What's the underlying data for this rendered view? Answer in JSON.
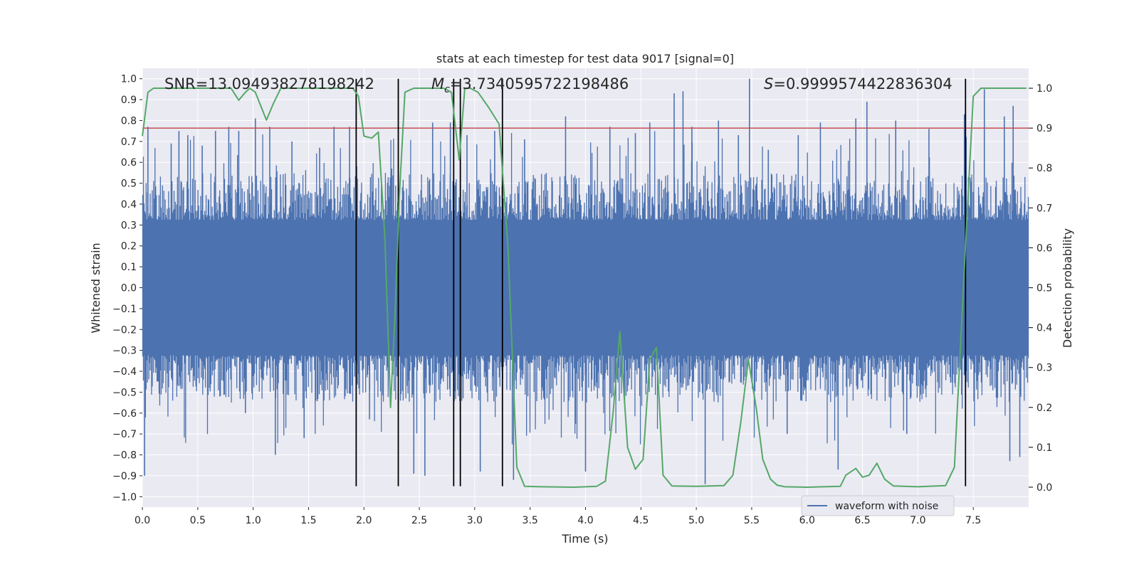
{
  "chart_data": {
    "type": "line",
    "title": "stats at each timestep for test data 9017 [signal=0]",
    "xlabel": "Time (s)",
    "ylabel": "Whitened strain",
    "y2label": "Detection probability",
    "xlim": [
      0.0,
      8.0
    ],
    "ylim": [
      -1.05,
      1.05
    ],
    "y2lim": [
      -0.05,
      1.05
    ],
    "xticks": [
      0.0,
      0.5,
      1.0,
      1.5,
      2.0,
      2.5,
      3.0,
      3.5,
      4.0,
      4.5,
      5.0,
      5.5,
      6.0,
      6.5,
      7.0,
      7.5
    ],
    "xtick_labels": [
      "0.0",
      "0.5",
      "1.0",
      "1.5",
      "2.0",
      "2.5",
      "3.0",
      "3.5",
      "4.0",
      "4.5",
      "5.0",
      "5.5",
      "6.0",
      "6.5",
      "7.0",
      "7.5"
    ],
    "yticks": [
      1.0,
      0.9,
      0.8,
      0.7,
      0.6,
      0.5,
      0.4,
      0.3,
      0.2,
      0.1,
      0.0,
      -0.1,
      -0.2,
      -0.3,
      -0.4,
      -0.5,
      -0.6,
      -0.7,
      -0.8,
      -0.9,
      -1.0
    ],
    "ytick_labels": [
      "1.0",
      "0.9",
      "0.8",
      "0.7",
      "0.6",
      "0.5",
      "0.4",
      "0.3",
      "0.2",
      "0.1",
      "0.0",
      "−0.1",
      "−0.2",
      "−0.3",
      "−0.4",
      "−0.5",
      "−0.6",
      "−0.7",
      "−0.8",
      "−0.9",
      "−1.0"
    ],
    "y2ticks": [
      1.0,
      0.9,
      0.8,
      0.7,
      0.6,
      0.5,
      0.4,
      0.3,
      0.2,
      0.1,
      0.0
    ],
    "y2tick_labels": [
      "1.0",
      "0.9",
      "0.8",
      "0.7",
      "0.6",
      "0.5",
      "0.4",
      "0.3",
      "0.2",
      "0.1",
      "0.0"
    ],
    "grid": true,
    "legend": {
      "placement": "lower-right",
      "entries": [
        "waveform with noise"
      ]
    },
    "annotations": {
      "snr": "SNR=13.094938278198242",
      "mc_symbol": "M",
      "mc_sub": "c",
      "mc_value": "=3.7340595722198486",
      "s_symbol": "S",
      "s_value": "=0.9999574422836304"
    },
    "threshold_line": {
      "axis": "y2",
      "value": 0.9,
      "color": "#c44e52"
    },
    "vertical_lines": [
      1.93,
      2.31,
      2.81,
      2.87,
      3.25,
      7.43
    ],
    "vertical_line_range": [
      -0.95,
      1.0
    ],
    "waveform": {
      "name": "waveform with noise",
      "color": "#4c72b0",
      "x_range": [
        0.0,
        8.0
      ],
      "envelope_typical": 0.45,
      "peaks": [
        [
          0.02,
          -0.9
        ],
        [
          0.05,
          0.77
        ],
        [
          0.26,
          0.69
        ],
        [
          0.33,
          0.75
        ],
        [
          0.41,
          0.73
        ],
        [
          0.54,
          0.68
        ],
        [
          0.66,
          0.75
        ],
        [
          0.78,
          0.77
        ],
        [
          0.87,
          0.75
        ],
        [
          0.93,
          -0.6
        ],
        [
          1.02,
          0.81
        ],
        [
          1.15,
          0.77
        ],
        [
          1.2,
          -0.8
        ],
        [
          1.35,
          0.7
        ],
        [
          1.46,
          -0.72
        ],
        [
          1.6,
          0.67
        ],
        [
          1.73,
          0.77
        ],
        [
          1.87,
          0.77
        ],
        [
          2.05,
          -0.63
        ],
        [
          2.25,
          0.57
        ],
        [
          2.45,
          -0.89
        ],
        [
          2.55,
          -0.9
        ],
        [
          2.62,
          0.79
        ],
        [
          2.78,
          0.79
        ],
        [
          2.93,
          0.73
        ],
        [
          3.05,
          -0.88
        ],
        [
          3.18,
          0.75
        ],
        [
          3.35,
          -0.92
        ],
        [
          3.45,
          0.71
        ],
        [
          3.82,
          0.82
        ],
        [
          4.0,
          -0.88
        ],
        [
          4.22,
          0.77
        ],
        [
          4.45,
          0.74
        ],
        [
          4.58,
          0.79
        ],
        [
          4.8,
          0.93
        ],
        [
          4.88,
          0.94
        ],
        [
          4.96,
          0.77
        ],
        [
          5.08,
          -0.94
        ],
        [
          5.2,
          0.8
        ],
        [
          5.38,
          0.73
        ],
        [
          5.48,
          1.0
        ],
        [
          5.65,
          0.66
        ],
        [
          5.82,
          -0.7
        ],
        [
          5.92,
          0.73
        ],
        [
          6.12,
          0.79
        ],
        [
          6.28,
          -0.87
        ],
        [
          6.44,
          0.81
        ],
        [
          6.54,
          0.89
        ],
        [
          6.8,
          0.8
        ],
        [
          6.9,
          -0.7
        ],
        [
          7.1,
          0.76
        ],
        [
          7.42,
          0.83
        ],
        [
          7.6,
          0.95
        ],
        [
          7.78,
          0.82
        ],
        [
          7.86,
          0.87
        ],
        [
          7.83,
          -0.83
        ],
        [
          7.92,
          -0.81
        ]
      ]
    },
    "probability": {
      "color": "#55a868",
      "axis": "y2",
      "x": [
        0.0,
        0.05,
        0.1,
        0.2,
        0.4,
        0.6,
        0.8,
        0.87,
        0.93,
        0.97,
        1.02,
        1.12,
        1.18,
        1.25,
        1.4,
        1.6,
        1.8,
        1.9,
        1.95,
        2.0,
        2.07,
        2.13,
        2.19,
        2.24,
        2.28,
        2.32,
        2.37,
        2.45,
        2.6,
        2.72,
        2.79,
        2.86,
        2.91,
        2.96,
        3.03,
        3.13,
        3.22,
        3.3,
        3.38,
        3.45,
        3.6,
        3.9,
        4.1,
        4.18,
        4.25,
        4.31,
        4.38,
        4.45,
        4.52,
        4.58,
        4.64,
        4.7,
        4.78,
        5.0,
        5.25,
        5.33,
        5.4,
        5.47,
        5.54,
        5.6,
        5.67,
        5.73,
        5.8,
        6.0,
        6.3,
        6.35,
        6.44,
        6.5,
        6.56,
        6.63,
        6.7,
        6.78,
        7.0,
        7.25,
        7.33,
        7.42,
        7.5,
        7.57,
        7.7,
        7.98
      ],
      "values": [
        0.88,
        0.99,
        1.0,
        1.0,
        1.0,
        1.0,
        1.0,
        0.97,
        0.99,
        1.0,
        0.99,
        0.92,
        0.96,
        1.0,
        1.0,
        1.0,
        1.0,
        1.0,
        0.98,
        0.88,
        0.875,
        0.89,
        0.62,
        0.2,
        0.43,
        0.73,
        0.99,
        1.0,
        1.0,
        1.0,
        0.99,
        0.82,
        1.0,
        1.0,
        0.99,
        0.95,
        0.91,
        0.6,
        0.05,
        0.002,
        0.001,
        0.0,
        0.002,
        0.015,
        0.19,
        0.39,
        0.1,
        0.045,
        0.07,
        0.32,
        0.35,
        0.03,
        0.003,
        0.002,
        0.004,
        0.03,
        0.16,
        0.32,
        0.2,
        0.07,
        0.02,
        0.005,
        0.001,
        0.0,
        0.002,
        0.03,
        0.047,
        0.025,
        0.03,
        0.06,
        0.02,
        0.003,
        0.001,
        0.004,
        0.05,
        0.55,
        0.98,
        1.0,
        1.0,
        1.0
      ]
    }
  }
}
